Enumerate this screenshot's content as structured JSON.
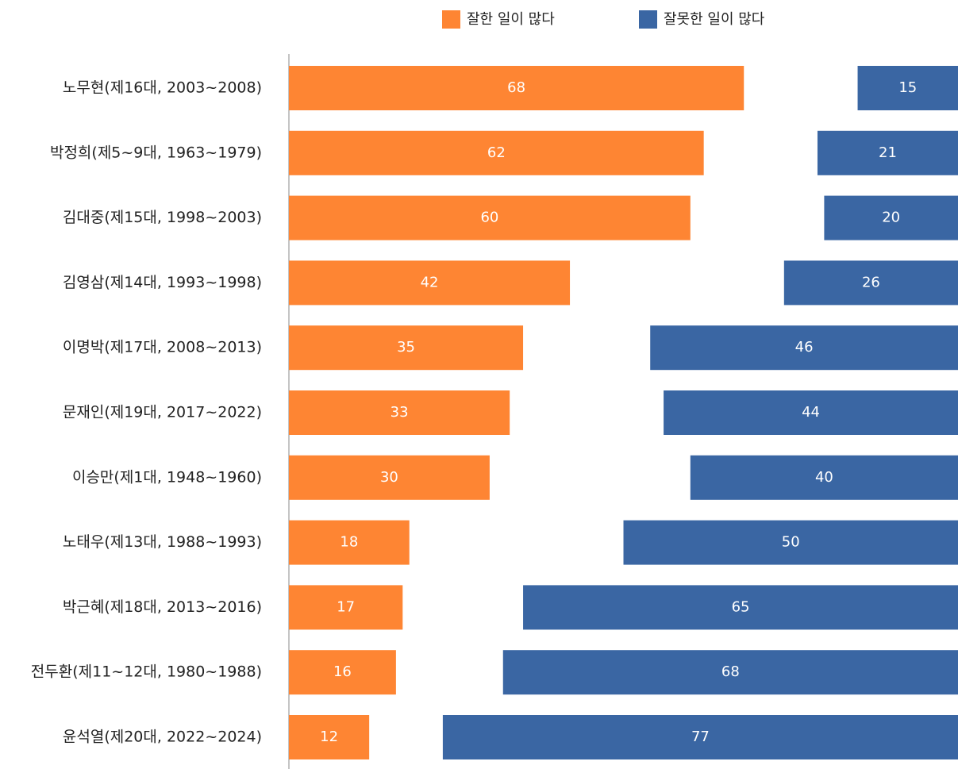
{
  "chart_data": {
    "type": "bar",
    "orientation": "horizontal",
    "categories": [
      "노무현(제16대, 2003~2008)",
      "박정희(제5~9대, 1963~1979)",
      "김대중(제15대, 1998~2003)",
      "김영삼(제14대, 1993~1998)",
      "이명박(제17대, 2008~2013)",
      "문재인(제19대, 2017~2022)",
      "이승만(제1대, 1948~1960)",
      "노태우(제13대, 1988~1993)",
      "박근혜(제18대, 2013~2016)",
      "전두환(제11~12대, 1980~1988)",
      "윤석열(제20대, 2022~2024)"
    ],
    "series": [
      {
        "name": "잘한 일이 많다",
        "color": "#fe8533",
        "values": [
          68,
          62,
          60,
          42,
          35,
          33,
          30,
          18,
          17,
          16,
          12
        ]
      },
      {
        "name": "잘못한 일이 많다",
        "color": "#3a66a3",
        "values": [
          15,
          21,
          20,
          26,
          46,
          44,
          40,
          50,
          65,
          68,
          77
        ]
      }
    ],
    "xlim": [
      0,
      100
    ],
    "legend": "top"
  }
}
